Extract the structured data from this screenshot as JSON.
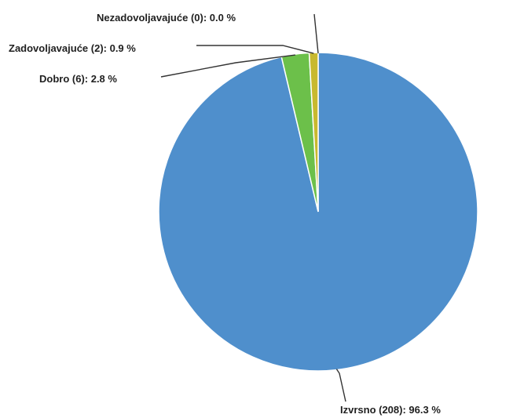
{
  "chart_data": {
    "type": "pie",
    "title": "",
    "slices": [
      {
        "category": "Izvrsno",
        "count": 208,
        "percent": 96.3,
        "label": "Izvrsno (208): 96.3 %",
        "color": "#4f8fcc"
      },
      {
        "category": "Dobro",
        "count": 6,
        "percent": 2.8,
        "label": "Dobro (6): 2.8 %",
        "color": "#6cc04a"
      },
      {
        "category": "Zadovoljavajuće",
        "count": 2,
        "percent": 0.9,
        "label": "Zadovoljavajuće (2): 0.9 %",
        "color": "#c8b92f"
      },
      {
        "category": "Nezadovoljavajuće",
        "count": 0,
        "percent": 0.0,
        "label": "Nezadovoljavajuće (0): 0.0 %",
        "color": "#d9534f"
      }
    ],
    "start_angle_deg": 0,
    "direction": "clockwise",
    "legend": "none",
    "data_labels": "outside with leader lines"
  }
}
